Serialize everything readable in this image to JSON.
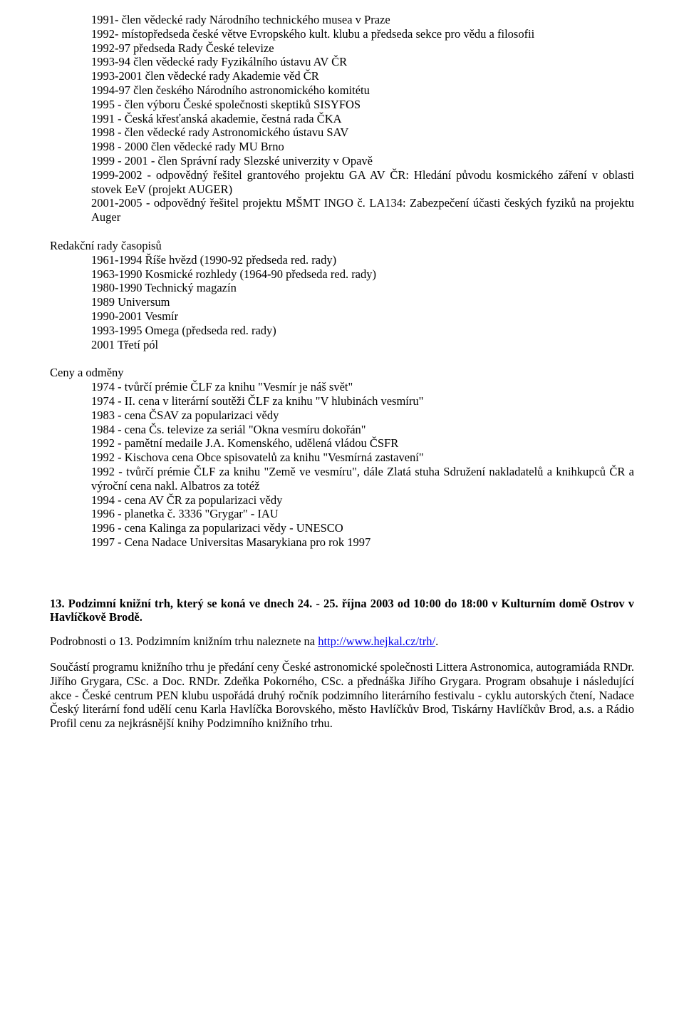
{
  "positions": {
    "items": [
      "1991- člen vědecké rady Národního technického musea v Praze",
      "1992- místopředseda české větve Evropského kult. klubu a předseda sekce pro vědu a filosofii",
      "1992-97 předseda Rady České televize",
      "1993-94 člen vědecké rady Fyzikálního ústavu AV ČR",
      "1993-2001 člen vědecké rady Akademie věd ČR",
      "1994-97 člen českého Národního astronomického komitétu",
      "1995 - člen výboru České společnosti skeptiků SISYFOS",
      "1991 - Česká křesťanská akademie, čestná rada ČKA",
      "1998 - člen vědecké rady Astronomického ústavu SAV",
      "1998 - 2000 člen vědecké rady MU Brno",
      "1999 - 2001 - člen Správní rady Slezské univerzity v Opavě",
      "1999-2002 - odpovědný řešitel grantového projektu GA AV ČR: Hledání původu kosmického záření v oblasti stovek EeV (projekt AUGER)",
      "2001-2005 - odpovědný řešitel projektu MŠMT INGO č. LA134: Zabezpečení účasti českých fyziků na projektu Auger"
    ]
  },
  "editorial": {
    "label": "Redakční rady časopisů",
    "items": [
      "1961-1994 Říše hvězd (1990-92 předseda red. rady)",
      "1963-1990 Kosmické rozhledy (1964-90 předseda red. rady)",
      "1980-1990 Technický magazín",
      "1989 Universum",
      "1990-2001 Vesmír",
      "1993-1995 Omega (předseda red. rady)",
      "2001 Třetí pól"
    ]
  },
  "awards": {
    "label": "Ceny a odměny",
    "items": [
      "1974 - tvůrčí prémie ČLF za knihu \"Vesmír je náš svět\"",
      "1974 - II. cena v literární soutěži ČLF za knihu \"V hlubinách vesmíru\"",
      "1983 - cena ČSAV za popularizaci vědy",
      "1984 - cena Čs. televize za seriál \"Okna vesmíru dokořán\"",
      "1992 - pamětní medaile J.A. Komenského, udělená vládou ČSFR",
      "1992 - Kischova cena Obce spisovatelů za knihu \"Vesmírná zastavení\"",
      "1992 - tvůrčí prémie ČLF za knihu \"Země ve vesmíru\", dále Zlatá stuha Sdružení nakladatelů a knihkupců ČR a výroční cena nakl. Albatros za totéž",
      "1994 - cena AV ČR za popularizaci vědy",
      "1996 - planetka č. 3336 \"Grygar\" - IAU",
      "1996 - cena Kalinga za popularizaci vědy - UNESCO",
      "1997 - Cena Nadace Universitas Masarykiana pro rok 1997"
    ]
  },
  "heading": "13. Podzimní knižní trh, který se koná ve dnech 24. - 25. října 2003 od 10:00 do 18:00 v Kulturním domě Ostrov v Havlíčkově Brodě.",
  "details": {
    "prefix": "Podrobnosti o 13. Podzimním knižním trhu naleznete na ",
    "link_text": "http://www.hejkal.cz/trh/",
    "suffix": "."
  },
  "final_para": "Součástí programu knižního trhu je předání ceny České astronomické společnosti Littera Astronomica,  autogramiáda RNDr. Jiřího Grygara, CSc. a Doc. RNDr. Zdeňka Pokorného, CSc. a přednáška Jiřího Grygara. Program obsahuje i následující akce - České centrum PEN klubu uspořádá druhý ročník podzimního literárního festivalu - cyklu autorských čtení, Nadace Český literární fond udělí cenu Karla Havlíčka Borovského, město Havlíčkův Brod, Tiskárny Havlíčkův Brod, a.s. a Rádio Profil cenu za nejkrásnější knihy Podzimního knižního trhu."
}
